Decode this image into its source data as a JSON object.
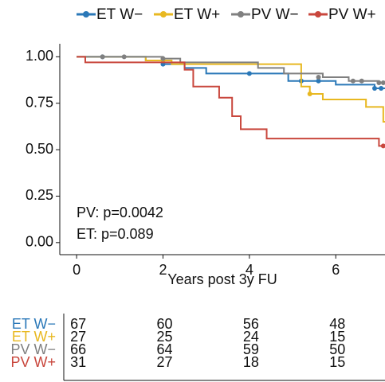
{
  "chart_data": {
    "type": "km",
    "xlabel": "Years post 3y FU",
    "xlim": [
      -0.39,
      7.14
    ],
    "ylim": [
      -0.065,
      1.07
    ],
    "xticks": [
      0,
      2,
      4,
      6
    ],
    "yticks": [
      {
        "value": 0,
        "label": "0.00"
      },
      {
        "value": 0.25,
        "label": "0.25"
      },
      {
        "value": 0.5,
        "label": "0.50"
      },
      {
        "value": 0.75,
        "label": "0.75"
      },
      {
        "value": 1,
        "label": "1.00"
      }
    ],
    "annotations": [
      "PV: p=0.0042",
      "ET: p=0.089"
    ],
    "series": [
      {
        "name": "ET W−",
        "color": "#2a78b8",
        "x": [
          0,
          1.6,
          2.0,
          2.5,
          3.0,
          4.9,
          6.0,
          6.9
        ],
        "values": [
          1.0,
          0.98,
          0.96,
          0.94,
          0.91,
          0.87,
          0.85,
          0.83
        ],
        "censor_x": [
          0.6,
          2.0,
          4.0,
          5.2,
          5.6,
          6.9,
          7.05
        ],
        "censor_values": [
          1.0,
          0.96,
          0.91,
          0.87,
          0.87,
          0.83,
          0.83
        ]
      },
      {
        "name": "ET W+",
        "color": "#e8b821",
        "x": [
          0,
          1.6,
          2.2,
          5.2,
          5.4,
          5.7,
          6.7,
          7.1
        ],
        "values": [
          1.0,
          0.98,
          0.96,
          0.84,
          0.8,
          0.77,
          0.73,
          0.65
        ],
        "censor_x": [
          2.0,
          5.4
        ],
        "censor_values": [
          0.98,
          0.8
        ]
      },
      {
        "name": "PV W−",
        "color": "#808080",
        "x": [
          0,
          2.0,
          2.4,
          4.2,
          4.8,
          5.7,
          6.3,
          7.0
        ],
        "values": [
          1.0,
          0.99,
          0.97,
          0.94,
          0.91,
          0.89,
          0.87,
          0.86
        ],
        "censor_x": [
          0.6,
          1.1,
          2.0,
          5.6,
          6.4,
          6.6,
          7.0,
          7.1
        ],
        "censor_values": [
          1.0,
          1.0,
          0.99,
          0.89,
          0.87,
          0.87,
          0.86,
          0.86
        ]
      },
      {
        "name": "PV W+",
        "color": "#c9473d",
        "x": [
          0,
          0.2,
          2.5,
          2.7,
          3.3,
          3.6,
          3.8,
          4.4,
          7.0
        ],
        "values": [
          1.0,
          0.97,
          0.93,
          0.84,
          0.78,
          0.68,
          0.61,
          0.56,
          0.52
        ],
        "censor_x": [
          7.1
        ],
        "censor_values": [
          0.52
        ]
      }
    ],
    "risk_table": {
      "rows": [
        {
          "name": "ET W−",
          "color": "#2a78b8",
          "counts": [
            67,
            60,
            56,
            48
          ]
        },
        {
          "name": "ET W+",
          "color": "#e8b821",
          "counts": [
            27,
            25,
            24,
            15
          ]
        },
        {
          "name": "PV W−",
          "color": "#808080",
          "counts": [
            66,
            64,
            59,
            50
          ]
        },
        {
          "name": "PV W+",
          "color": "#c9473d",
          "counts": [
            31,
            27,
            18,
            15
          ]
        }
      ]
    }
  }
}
